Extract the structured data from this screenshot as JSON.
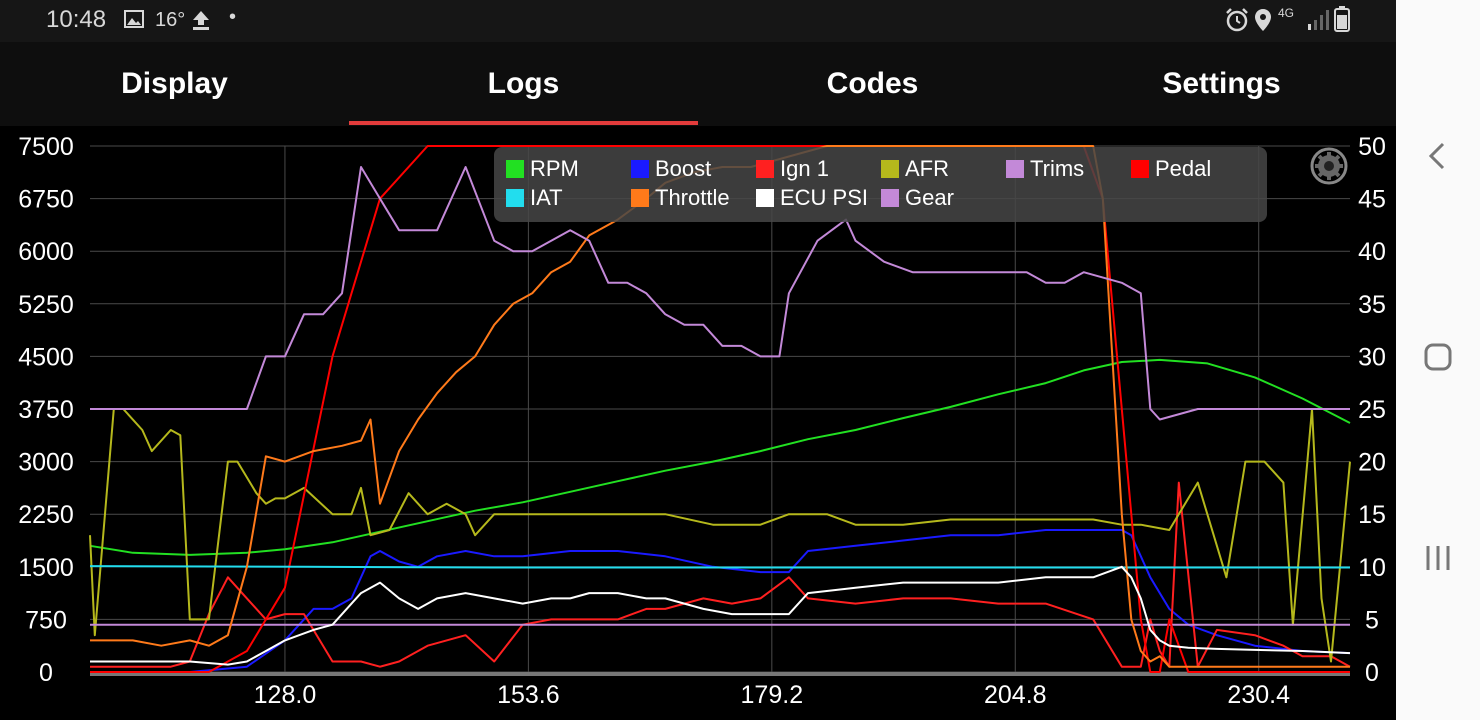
{
  "status_bar": {
    "time": "10:48",
    "temperature": "16°",
    "network": "4G",
    "icons": [
      "image-icon",
      "upload-icon",
      "alarm-icon",
      "location-icon",
      "signal-icon",
      "battery-icon"
    ]
  },
  "tabs": [
    {
      "label": "Display",
      "selected": false
    },
    {
      "label": "Logs",
      "selected": true
    },
    {
      "label": "Codes",
      "selected": false
    },
    {
      "label": "Settings",
      "selected": false
    }
  ],
  "accent_color": "#e23b3b",
  "chart_data": {
    "type": "line",
    "x_ticks": [
      "128.0",
      "153.6",
      "179.2",
      "204.8",
      "230.4"
    ],
    "x_tick_values": [
      128.0,
      153.6,
      179.2,
      204.8,
      230.4
    ],
    "xlim": [
      107.5,
      240.0
    ],
    "left_axis": {
      "ylim": [
        0,
        7500
      ],
      "ticks": [
        "0",
        "750",
        "1500",
        "2250",
        "3000",
        "3750",
        "4500",
        "5250",
        "6000",
        "6750",
        "7500"
      ]
    },
    "right_axis": {
      "ylim": [
        0,
        50
      ],
      "ticks": [
        "0",
        "5",
        "10",
        "15",
        "20",
        "25",
        "30",
        "35",
        "40",
        "45",
        "50"
      ]
    },
    "grid": true,
    "legend_position": "top-center",
    "series": [
      {
        "name": "RPM",
        "color": "#22e022",
        "axis": "left",
        "x": [
          107.5,
          112,
          118,
          124,
          128,
          133,
          138,
          143,
          148,
          153,
          158,
          163,
          168,
          173,
          178,
          183,
          188,
          193,
          198,
          203,
          208,
          212,
          216,
          220,
          225,
          230,
          235,
          240
        ],
        "y": [
          1800,
          1700,
          1670,
          1700,
          1750,
          1850,
          2000,
          2150,
          2300,
          2420,
          2570,
          2720,
          2870,
          3000,
          3150,
          3320,
          3450,
          3620,
          3780,
          3960,
          4120,
          4300,
          4420,
          4450,
          4400,
          4200,
          3900,
          3550
        ]
      },
      {
        "name": "Boost",
        "color": "#1a1aff",
        "axis": "right",
        "x": [
          107.5,
          112,
          118,
          124,
          128,
          131,
          133,
          135,
          137,
          138,
          140,
          142,
          144,
          147,
          150,
          153,
          158,
          163,
          168,
          173,
          178,
          181,
          183,
          188,
          193,
          198,
          203,
          208,
          213,
          216,
          217,
          219,
          221,
          223,
          226,
          230,
          235,
          240
        ],
        "y": [
          0,
          0,
          0,
          0.5,
          3,
          6,
          6,
          7,
          11,
          11.5,
          10.5,
          10,
          11,
          11.5,
          11,
          11,
          11.5,
          11.5,
          11,
          10,
          9.5,
          9.5,
          11.5,
          12,
          12.5,
          13,
          13,
          13.5,
          13.5,
          13.5,
          13,
          9,
          6,
          4.5,
          3.5,
          2.5,
          2,
          1.8
        ]
      },
      {
        "name": "Ign 1",
        "color": "#ff2020",
        "axis": "right",
        "x": [
          107.5,
          112,
          116,
          118,
          120,
          122,
          124,
          126,
          128,
          130,
          133,
          136,
          138,
          140,
          143,
          147,
          150,
          153,
          156,
          160,
          163,
          166,
          168,
          172,
          175,
          178,
          181,
          183,
          188,
          193,
          198,
          203,
          208,
          213,
          216,
          218,
          219,
          220,
          221,
          222,
          224,
          226,
          230,
          233,
          235,
          238,
          240
        ],
        "y": [
          0.5,
          0.5,
          0.5,
          1,
          5.5,
          9,
          7,
          5,
          5.5,
          5.5,
          1,
          1,
          0.5,
          1,
          2.5,
          3.5,
          1,
          4.5,
          5,
          5,
          5,
          6,
          6,
          7,
          6.5,
          7,
          9,
          7,
          6.5,
          7,
          7,
          6.5,
          6.5,
          5,
          0.5,
          0.5,
          5,
          2,
          0.5,
          18,
          0.5,
          4,
          3.5,
          2.5,
          1.5,
          1.5,
          0.5
        ]
      },
      {
        "name": "AFR",
        "color": "#b5b81c",
        "axis": "right",
        "x": [
          107.5,
          108,
          110,
          111,
          113,
          114,
          116,
          117,
          118,
          120,
          122,
          123,
          125,
          126,
          127,
          128,
          130,
          133,
          135,
          136,
          137,
          139,
          141,
          143,
          145,
          147,
          148,
          150,
          153,
          158,
          163,
          168,
          173,
          178,
          181,
          183,
          185,
          188,
          193,
          198,
          203,
          208,
          213,
          216,
          218,
          221,
          224,
          227,
          229,
          231,
          233,
          234,
          236,
          237,
          238,
          240
        ],
        "y": [
          13,
          3.5,
          25,
          25,
          23,
          21,
          23,
          22.5,
          5,
          5,
          20,
          20,
          17,
          16,
          16.5,
          16.5,
          17.5,
          15,
          15,
          17.5,
          13,
          13.5,
          17,
          15,
          16,
          15,
          13,
          15,
          15,
          15,
          15,
          15,
          14,
          14,
          15,
          15,
          15,
          14,
          14,
          14.5,
          14.5,
          14.5,
          14.5,
          14,
          14,
          13.5,
          18,
          9,
          20,
          20,
          18,
          4.5,
          25,
          7,
          1,
          20
        ]
      },
      {
        "name": "Trims",
        "color": "#c389d8",
        "axis": "right",
        "x": [
          107.5,
          240
        ],
        "y": [
          4.5,
          4.5
        ]
      },
      {
        "name": "Pedal",
        "color": "#ff0000",
        "axis": "right",
        "x": [
          107.5,
          114,
          120,
          124,
          128,
          133,
          138,
          143,
          148,
          153,
          158,
          163,
          168,
          173,
          178,
          183,
          188,
          193,
          198,
          203,
          208,
          212,
          214,
          216,
          217,
          218,
          219,
          220,
          221,
          223,
          225,
          228,
          230,
          233,
          235,
          240
        ],
        "y": [
          0,
          0,
          0,
          2,
          8,
          30,
          45,
          50,
          50,
          50,
          50,
          50,
          50,
          50,
          50,
          50,
          50,
          50,
          50,
          50,
          50,
          50,
          45,
          25,
          15,
          5,
          0,
          0,
          5,
          0,
          0,
          0,
          0,
          0,
          0,
          0
        ]
      },
      {
        "name": "IAT",
        "color": "#22ddee",
        "axis": "left",
        "x": [
          107.5,
          130,
          150,
          170,
          190,
          210,
          225,
          240
        ],
        "y": [
          1510,
          1500,
          1490,
          1490,
          1490,
          1490,
          1490,
          1490
        ]
      },
      {
        "name": "Throttle",
        "color": "#ff7a1a",
        "axis": "right",
        "x": [
          107.5,
          112,
          115,
          118,
          120,
          122,
          124,
          126,
          128,
          131,
          134,
          136,
          137,
          138,
          140,
          142,
          144,
          146,
          148,
          150,
          152,
          154,
          156,
          158,
          160,
          163,
          166,
          168,
          171,
          174,
          177,
          181,
          185,
          190,
          195,
          200,
          205,
          210,
          213,
          214,
          215,
          216,
          217,
          218,
          219,
          220,
          221,
          222,
          223,
          225,
          230,
          235,
          240
        ],
        "y": [
          3,
          3,
          2.5,
          3,
          2.5,
          3.5,
          10,
          20.5,
          20,
          21,
          21.5,
          22,
          24,
          16,
          21,
          24,
          26.5,
          28.5,
          30,
          33,
          35,
          36,
          38,
          39,
          41.5,
          43,
          45,
          46.5,
          47.5,
          48,
          48,
          49,
          50,
          50,
          50,
          50,
          50,
          50,
          50,
          45,
          30,
          15,
          5,
          2,
          1,
          1.5,
          0.5,
          0.5,
          0.5,
          0.5,
          0.5,
          0.5,
          0.5
        ]
      },
      {
        "name": "ECU PSI",
        "color": "#ffffff",
        "axis": "right",
        "x": [
          107.5,
          112,
          118,
          122,
          124,
          126,
          128,
          131,
          133,
          136,
          138,
          140,
          142,
          144,
          147,
          150,
          153,
          156,
          158,
          160,
          163,
          166,
          168,
          172,
          175,
          178,
          181,
          183,
          188,
          193,
          198,
          203,
          208,
          213,
          216,
          217,
          218,
          219,
          220,
          221,
          223,
          226,
          230,
          235,
          240
        ],
        "y": [
          1,
          1,
          1,
          0.7,
          1,
          2,
          3,
          4,
          4.5,
          7.5,
          8.5,
          7,
          6,
          7,
          7.5,
          7,
          6.5,
          7,
          7,
          7.5,
          7.5,
          7,
          7,
          6,
          5.5,
          5.5,
          5.5,
          7.5,
          8,
          8.5,
          8.5,
          8.5,
          9,
          9,
          10,
          9,
          7,
          4,
          3,
          2.5,
          2.3,
          2.2,
          2.1,
          2,
          1.8
        ]
      },
      {
        "name": "Gear",
        "color": "#c389d8",
        "axis": "right",
        "x": [
          107.5,
          124,
          126,
          128,
          130,
          132,
          134,
          136,
          138,
          140,
          142,
          144,
          147,
          150,
          152,
          154,
          156,
          158,
          160,
          162,
          164,
          166,
          168,
          170,
          172,
          174,
          176,
          178,
          180,
          181,
          184,
          187,
          188,
          191,
          194,
          198,
          203,
          206,
          208,
          210,
          212,
          216,
          218,
          219,
          220,
          224,
          240
        ],
        "y": [
          25,
          25,
          30,
          30,
          34,
          34,
          36,
          48,
          45,
          42,
          42,
          42,
          48,
          41,
          40,
          40,
          41,
          42,
          41,
          37,
          37,
          36,
          34,
          33,
          33,
          31,
          31,
          30,
          30,
          36,
          41,
          43,
          41,
          39,
          38,
          38,
          38,
          38,
          37,
          37,
          38,
          37,
          36,
          25,
          24,
          25,
          25
        ]
      }
    ]
  },
  "legend": [
    {
      "label": "RPM",
      "color": "#22e022"
    },
    {
      "label": "Boost",
      "color": "#1a1aff"
    },
    {
      "label": "Ign 1",
      "color": "#ff2020"
    },
    {
      "label": "AFR",
      "color": "#b5b81c"
    },
    {
      "label": "Trims",
      "color": "#c389d8"
    },
    {
      "label": "Pedal",
      "color": "#ff0000"
    },
    {
      "label": "IAT",
      "color": "#22ddee"
    },
    {
      "label": "Throttle",
      "color": "#ff7a1a"
    },
    {
      "label": "ECU PSI",
      "color": "#ffffff"
    },
    {
      "label": "Gear",
      "color": "#c389d8"
    }
  ]
}
